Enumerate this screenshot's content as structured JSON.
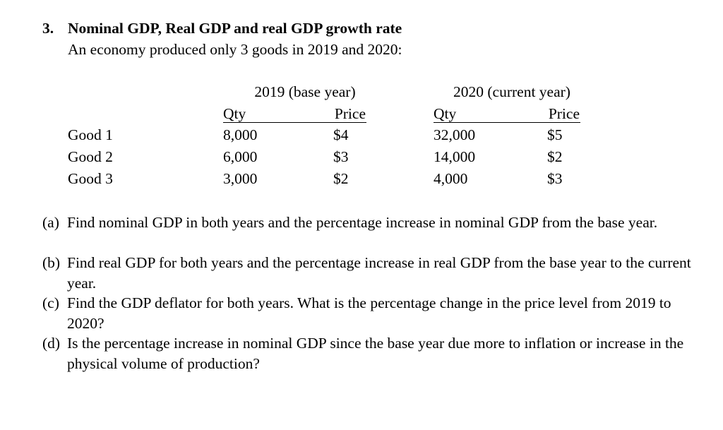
{
  "heading": {
    "number": "3.",
    "title": "Nominal GDP, Real GDP and real GDP growth rate",
    "intro": "An economy produced only 3 goods in 2019 and 2020:"
  },
  "table": {
    "groups": [
      "2019 (base year)",
      "2020 (current year)"
    ],
    "subheaders": [
      "Qty",
      "Price",
      "Qty",
      "Price"
    ],
    "rows": [
      {
        "good": "Good 1",
        "q2019": "8,000",
        "p2019": "$4",
        "q2020": "32,000",
        "p2020": "$5"
      },
      {
        "good": "Good 2",
        "q2019": "6,000",
        "p2019": "$3",
        "q2020": "14,000",
        "p2020": "$2"
      },
      {
        "good": "Good 3",
        "q2019": "3,000",
        "p2019": "$2",
        "q2020": "4,000",
        "p2020": "$3"
      }
    ]
  },
  "questions": [
    {
      "label": "(a)",
      "text": "Find nominal GDP in both years and the percentage increase in nominal GDP from the base year."
    },
    {
      "label": "(b)",
      "text": "Find real GDP for both years and the percentage increase in real GDP from the base year to the current year."
    },
    {
      "label": "(c)",
      "text": "Find the GDP deflator for both years. What is the percentage change in the price level from 2019 to 2020?"
    },
    {
      "label": "(d)",
      "text": "Is the percentage increase in nominal GDP since the base year due more to inflation or increase in the physical volume of production?"
    }
  ]
}
